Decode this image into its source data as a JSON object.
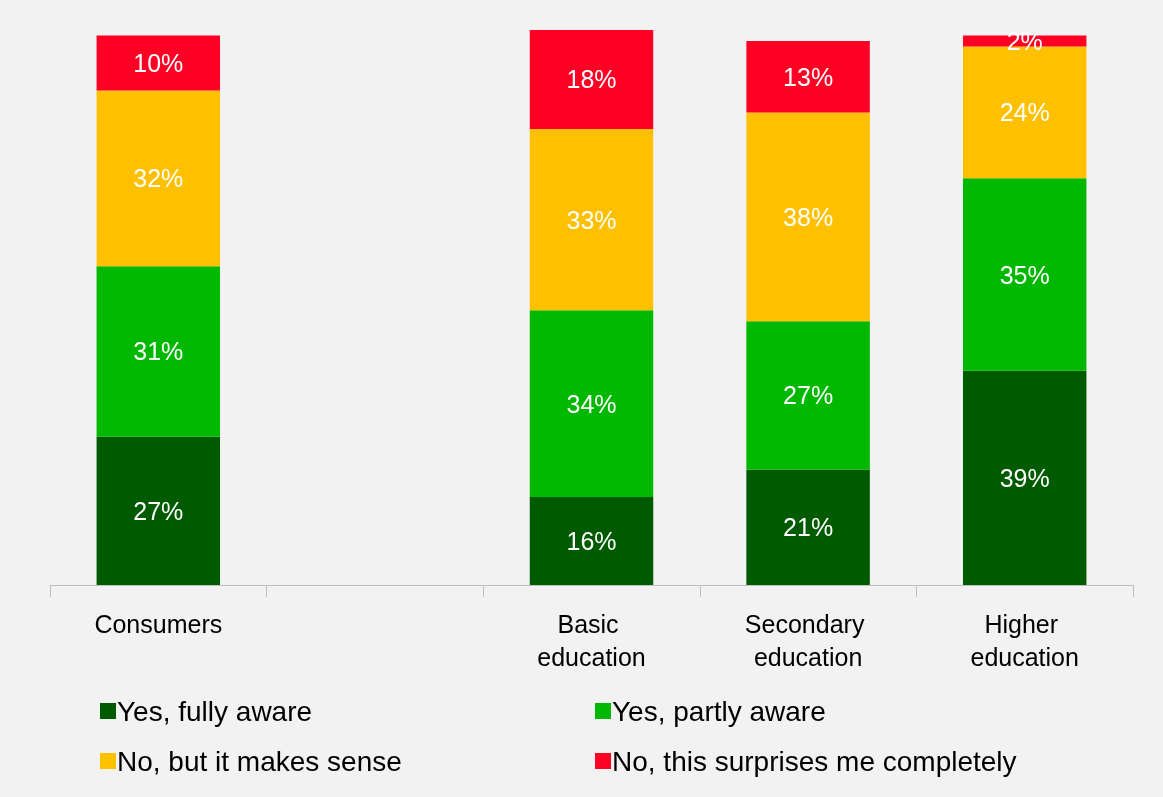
{
  "chart_data": {
    "type": "bar",
    "stacked": true,
    "legend": "bottom",
    "grid": false,
    "categories": [
      "Consumers",
      null,
      "Basic education",
      "Secondary education",
      "Higher education"
    ],
    "series": [
      {
        "name": "Yes, fully aware",
        "color": "#005a00",
        "values": [
          27,
          null,
          16,
          21,
          39
        ],
        "value_labels": [
          "27%",
          null,
          "16%",
          "21%",
          "39%"
        ]
      },
      {
        "name": "Yes, partly aware",
        "color": "#00b800",
        "values": [
          31,
          null,
          34,
          27,
          35
        ],
        "value_labels": [
          "31%",
          null,
          "34%",
          "27%",
          "35%"
        ]
      },
      {
        "name": "No, but it makes sense",
        "color": "#ffc000",
        "values": [
          32,
          null,
          33,
          38,
          24
        ],
        "value_labels": [
          "32%",
          null,
          "33%",
          "38%",
          "24%"
        ]
      },
      {
        "name": "No, this surprises me completely",
        "color": "#ff0025",
        "values": [
          10,
          null,
          18,
          13,
          2
        ],
        "value_labels": [
          "10%",
          null,
          "18%",
          "13%",
          "2%"
        ]
      }
    ]
  }
}
